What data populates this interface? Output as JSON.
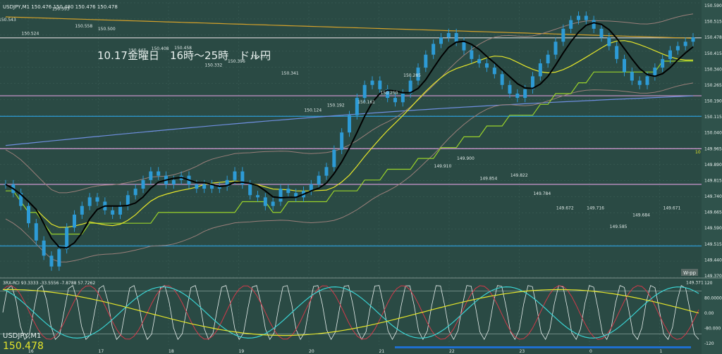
{
  "header": {
    "symbol_info": "USDJPY,M1 150.476 150.480 150.476 150.478"
  },
  "title": "10.17金曜日　16時～25時　ドル円",
  "watermark": "USDJPY,M1",
  "current_price": "150.478",
  "subwindow_label": "3RX-RCI 93.3333 -33.5556 -7.8788 57.7262",
  "wpp_label": "W-pp",
  "side_tag": "10",
  "colors": {
    "background": "#2a4a44",
    "grid": "#3f625b",
    "candle": "#2d9bd6",
    "black_ma": "#000000",
    "yellow_ma": "#e6e62a",
    "lime_line": "#9ad22a",
    "orange_line": "#d4a12a",
    "blue_line": "#6f8fe0",
    "pink_line": "#d59ad5",
    "brown_line": "#9a7f7a"
  },
  "chart_data": {
    "type": "line",
    "series": [
      {
        "name": "USDJPY M1",
        "values": [
          149.8,
          149.76,
          149.7,
          149.62,
          149.54,
          149.47,
          149.42,
          149.5,
          149.6,
          149.66,
          149.7,
          149.74,
          149.72,
          149.68,
          149.66,
          149.7,
          149.75,
          149.78,
          149.82,
          149.86,
          149.84,
          149.8,
          149.82,
          149.84,
          149.8,
          149.78,
          149.8,
          149.78,
          149.79,
          149.82,
          149.86,
          149.8,
          149.75,
          149.74,
          149.7,
          149.72,
          149.78,
          149.76,
          149.74,
          149.77,
          149.8,
          149.84,
          149.88,
          149.96,
          150.04,
          150.12,
          150.2,
          150.26,
          150.28,
          150.24,
          150.2,
          150.18,
          150.22,
          150.28,
          150.34,
          150.4,
          150.45,
          150.48,
          150.5,
          150.46,
          150.42,
          150.38,
          150.36,
          150.34,
          150.31,
          150.26,
          150.22,
          150.2,
          150.24,
          150.3,
          150.36,
          150.4,
          150.46,
          150.52,
          150.56,
          150.58,
          150.56,
          150.52,
          150.48,
          150.44,
          150.38,
          150.32,
          150.28,
          150.26,
          150.3,
          150.34,
          150.38,
          150.42,
          150.44,
          150.46,
          150.48
        ]
      }
    ],
    "ylim": [
      149.37,
      150.64
    ],
    "y_ticks": [
      "150.590",
      "150.515",
      "150.478",
      "150.415",
      "150.340",
      "150.265",
      "150.190",
      "150.115",
      "150.040",
      "149.965",
      "149.890",
      "149.815",
      "149.740",
      "149.665",
      "149.590",
      "149.515",
      "149.440",
      "149.370"
    ],
    "x_ticks": [
      "16",
      "17",
      "18",
      "19",
      "20",
      "21",
      "22",
      "23",
      "0",
      "1"
    ],
    "price_labels": [
      "150.543",
      "150.524",
      "150.593",
      "150.558",
      "150.500",
      "150.447",
      "150.408",
      "150.458",
      "150.332",
      "150.396",
      "150.372",
      "150.341",
      "150.124",
      "150.192",
      "150.161",
      "150.250",
      "150.285",
      "149.910",
      "149.900",
      "149.854",
      "149.822",
      "149.784",
      "149.672",
      "149.716",
      "149.585",
      "149.684",
      "149.671",
      "149.371"
    ],
    "horizontal_levels": [
      {
        "value": 150.478,
        "color": "#c8c8c8"
      },
      {
        "value": 150.21,
        "color": "#d59ad5"
      },
      {
        "value": 150.115,
        "color": "#2d9bd6"
      },
      {
        "value": 149.965,
        "color": "#d59ad5"
      },
      {
        "value": 149.8,
        "color": "#e0a0e0"
      },
      {
        "value": 149.515,
        "color": "#2d9bd6"
      }
    ],
    "rci_ylim": [
      -120,
      120
    ],
    "rci_ticks": [
      "120",
      "80.0000",
      "0.00",
      "-80.000",
      "-120"
    ],
    "grid": true
  }
}
